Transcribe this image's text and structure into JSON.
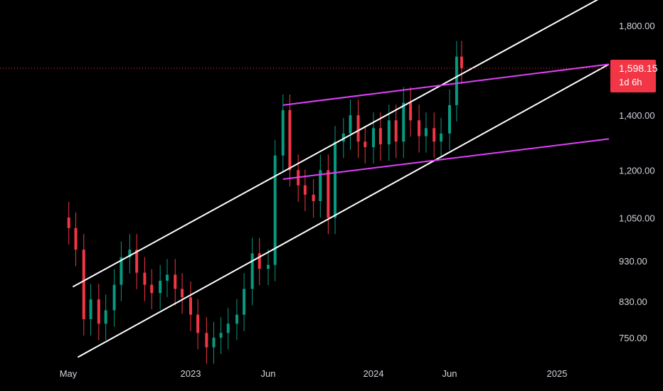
{
  "chart_data": {
    "type": "candlestick",
    "scale": "log",
    "grid": false,
    "y_ticks": [
      "1,800.00",
      "1,400.00",
      "1,200.00",
      "1,050.00",
      "930.00",
      "830.00",
      "750.00"
    ],
    "y_tick_values": [
      1800,
      1400,
      1200,
      1050,
      930,
      830,
      750
    ],
    "x_ticks": [
      "May",
      "2023",
      "Jun",
      "2024",
      "Jun",
      "2025"
    ],
    "x_tick_dates": [
      "2022-05-01",
      "2023-01-01",
      "2023-06-01",
      "2024-01-01",
      "2024-06-01",
      "2025-01-01"
    ],
    "colors": {
      "up": "#089981",
      "down": "#f23645",
      "channel": "#ffffff",
      "wedge": "#e040fb",
      "last_price_line": "#f23645"
    },
    "last_price": {
      "label": "1,598.15",
      "countdown": "1d 6h",
      "value": 1598.15
    },
    "candles_weekly_close": [
      {
        "date": "2022-05-02",
        "close": 1020
      },
      {
        "date": "2022-05-16",
        "close": 960
      },
      {
        "date": "2022-06-01",
        "close": 790
      },
      {
        "date": "2022-06-15",
        "close": 835
      },
      {
        "date": "2022-07-01",
        "close": 780
      },
      {
        "date": "2022-07-15",
        "close": 810
      },
      {
        "date": "2022-08-01",
        "close": 870
      },
      {
        "date": "2022-08-15",
        "close": 940
      },
      {
        "date": "2022-09-01",
        "close": 960
      },
      {
        "date": "2022-09-15",
        "close": 900
      },
      {
        "date": "2022-10-01",
        "close": 870
      },
      {
        "date": "2022-10-15",
        "close": 850
      },
      {
        "date": "2022-11-01",
        "close": 880
      },
      {
        "date": "2022-11-15",
        "close": 895
      },
      {
        "date": "2022-12-01",
        "close": 860
      },
      {
        "date": "2022-12-15",
        "close": 840
      },
      {
        "date": "2023-01-01",
        "close": 800
      },
      {
        "date": "2023-01-15",
        "close": 760
      },
      {
        "date": "2023-02-01",
        "close": 730
      },
      {
        "date": "2023-02-15",
        "close": 750
      },
      {
        "date": "2023-03-01",
        "close": 760
      },
      {
        "date": "2023-03-15",
        "close": 780
      },
      {
        "date": "2023-04-01",
        "close": 800
      },
      {
        "date": "2023-04-15",
        "close": 860
      },
      {
        "date": "2023-05-01",
        "close": 950
      },
      {
        "date": "2023-05-15",
        "close": 910
      },
      {
        "date": "2023-06-01",
        "close": 920
      },
      {
        "date": "2023-06-15",
        "close": 1250
      },
      {
        "date": "2023-07-01",
        "close": 1420
      },
      {
        "date": "2023-07-15",
        "close": 1200
      },
      {
        "date": "2023-08-01",
        "close": 1150
      },
      {
        "date": "2023-08-15",
        "close": 1120
      },
      {
        "date": "2023-09-01",
        "close": 1100
      },
      {
        "date": "2023-09-15",
        "close": 1200
      },
      {
        "date": "2023-10-01",
        "close": 1050
      },
      {
        "date": "2023-10-15",
        "close": 1300
      },
      {
        "date": "2023-11-01",
        "close": 1330
      },
      {
        "date": "2023-11-15",
        "close": 1400
      },
      {
        "date": "2023-12-01",
        "close": 1300
      },
      {
        "date": "2023-12-15",
        "close": 1280
      },
      {
        "date": "2024-01-01",
        "close": 1350
      },
      {
        "date": "2024-01-15",
        "close": 1290
      },
      {
        "date": "2024-02-01",
        "close": 1380
      },
      {
        "date": "2024-02-15",
        "close": 1300
      },
      {
        "date": "2024-03-01",
        "close": 1450
      },
      {
        "date": "2024-03-15",
        "close": 1380
      },
      {
        "date": "2024-04-01",
        "close": 1320
      },
      {
        "date": "2024-04-15",
        "close": 1350
      },
      {
        "date": "2024-05-01",
        "close": 1300
      },
      {
        "date": "2024-05-15",
        "close": 1330
      },
      {
        "date": "2024-06-01",
        "close": 1440
      },
      {
        "date": "2024-06-15",
        "close": 1650
      },
      {
        "date": "2024-06-25",
        "close": 1598.15
      }
    ],
    "trendlines": [
      {
        "style": "channel",
        "from": {
          "date": "2022-05-10",
          "price": 865
        },
        "to": {
          "date": "2025-03-01",
          "price": 1970
        }
      },
      {
        "style": "channel",
        "from": {
          "date": "2022-05-20",
          "price": 710
        },
        "to": {
          "date": "2025-03-01",
          "price": 1615
        }
      },
      {
        "style": "wedge",
        "from": {
          "date": "2023-07-01",
          "price": 1440
        },
        "to": {
          "date": "2025-03-01",
          "price": 1615
        }
      },
      {
        "style": "wedge",
        "from": {
          "date": "2023-07-01",
          "price": 1170
        },
        "to": {
          "date": "2025-03-01",
          "price": 1310
        }
      }
    ]
  }
}
